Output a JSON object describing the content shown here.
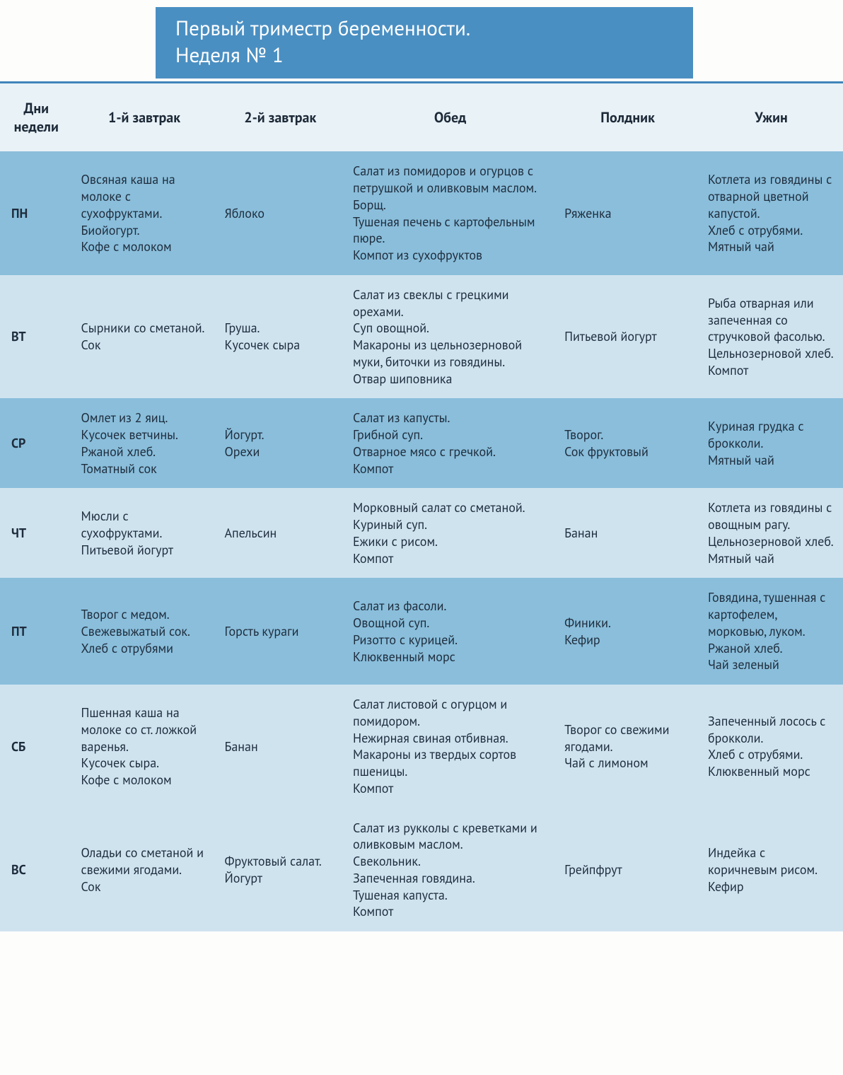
{
  "colors": {
    "title_bg": "#4a8fc2",
    "title_fg": "#ffffff",
    "divider": "#3f85ba",
    "head_bg": "#e9f2f7",
    "head_fg": "#1d2a38",
    "row_a": "#8abedb",
    "row_b": "#cfe3ef",
    "cell_fg": "#1e2c3c",
    "page_bg": "#fdfdfb"
  },
  "title": {
    "line1": "Первый триместр беременности.",
    "line2": "Неделя № 1"
  },
  "columns": [
    "Дни\nнедели",
    "1-й завтрак",
    "2-й завтрак",
    "Обед",
    "Полдник",
    "Ужин"
  ],
  "rows": [
    {
      "day": "ПН",
      "shade": "a",
      "cells": [
        "Овсяная каша на молоке с сухофруктами.\nБиойогурт.\nКофе с молоком",
        "Яблоко",
        "Салат из помидоров и огурцов с петрушкой и оливковым маслом.\nБорщ.\nТушеная печень с картофельным пюре.\nКомпот из сухофруктов",
        "Ряженка",
        "Котлета из говядины с отварной цветной капустой.\nХлеб с отрубями.\nМятный чай"
      ]
    },
    {
      "day": "ВТ",
      "shade": "b",
      "cells": [
        "Сырники со сметаной.\nСок",
        "Груша.\nКусочек сыра",
        "Салат из свеклы с грецкими орехами.\nСуп овощной.\nМакароны из цельнозерновой муки, биточки из говядины.\nОтвар шиповника",
        "Питьевой йогурт",
        "Рыба отварная или запеченная со стручковой фасолью.\nЦельнозерновой хлеб.\nКомпот"
      ]
    },
    {
      "day": "СР",
      "shade": "a",
      "cells": [
        "Омлет из 2 яиц.\nКусочек ветчины.\nРжаной хлеб.\nТоматный сок",
        "Йогурт.\nОрехи",
        "Салат из капусты.\nГрибной суп.\nОтварное мясо с гречкой.\nКомпот",
        "Творог.\nСок фруктовый",
        "Куриная грудка с брокколи.\nМятный чай"
      ]
    },
    {
      "day": "ЧТ",
      "shade": "b",
      "cells": [
        "Мюсли с сухофруктами.\nПитьевой йогурт",
        "Апельсин",
        "Морковный салат со сметаной.\nКуриный суп.\nЕжики с рисом.\nКомпот",
        "Банан",
        "Котлета из говядины с овощным рагу.\nЦельнозерновой хлеб.\nМятный чай"
      ]
    },
    {
      "day": "ПТ",
      "shade": "a",
      "cells": [
        "Творог с медом.\nСвежевыжатый сок.\nХлеб с отрубями",
        "Горсть кураги",
        "Салат из фасоли.\nОвощной суп.\nРизотто с курицей.\nКлюквенный морс",
        "Финики.\nКефир",
        "Говядина, тушенная с картофелем, морковью, луком.\nРжаной хлеб.\nЧай зеленый"
      ]
    },
    {
      "day": "СБ",
      "shade": "b",
      "cells": [
        "Пшенная каша на молоке со ст. ложкой варенья.\nКусочек сыра.\nКофе с молоком",
        "Банан",
        "Салат листовой с огурцом и помидором.\nНежирная свиная отбивная.\nМакароны из твердых сортов пшеницы.\nКомпот",
        "Творог со свежими ягодами.\nЧай с лимоном",
        "Запеченный лосось с брокколи.\nХлеб с отрубями.\nКлюквенный морс"
      ]
    },
    {
      "day": "ВС",
      "shade": "b",
      "cells": [
        "Оладьи со сметаной и свежими ягодами.\nСок",
        "Фруктовый салат.\nЙогурт",
        "Салат из рукколы с креветками и оливковым маслом.\nСвекольник.\nЗапеченная говядина.\nТушеная капуста.\nКомпот",
        "Грейпфрут",
        "Индейка с коричневым рисом.\nКефир"
      ]
    }
  ]
}
